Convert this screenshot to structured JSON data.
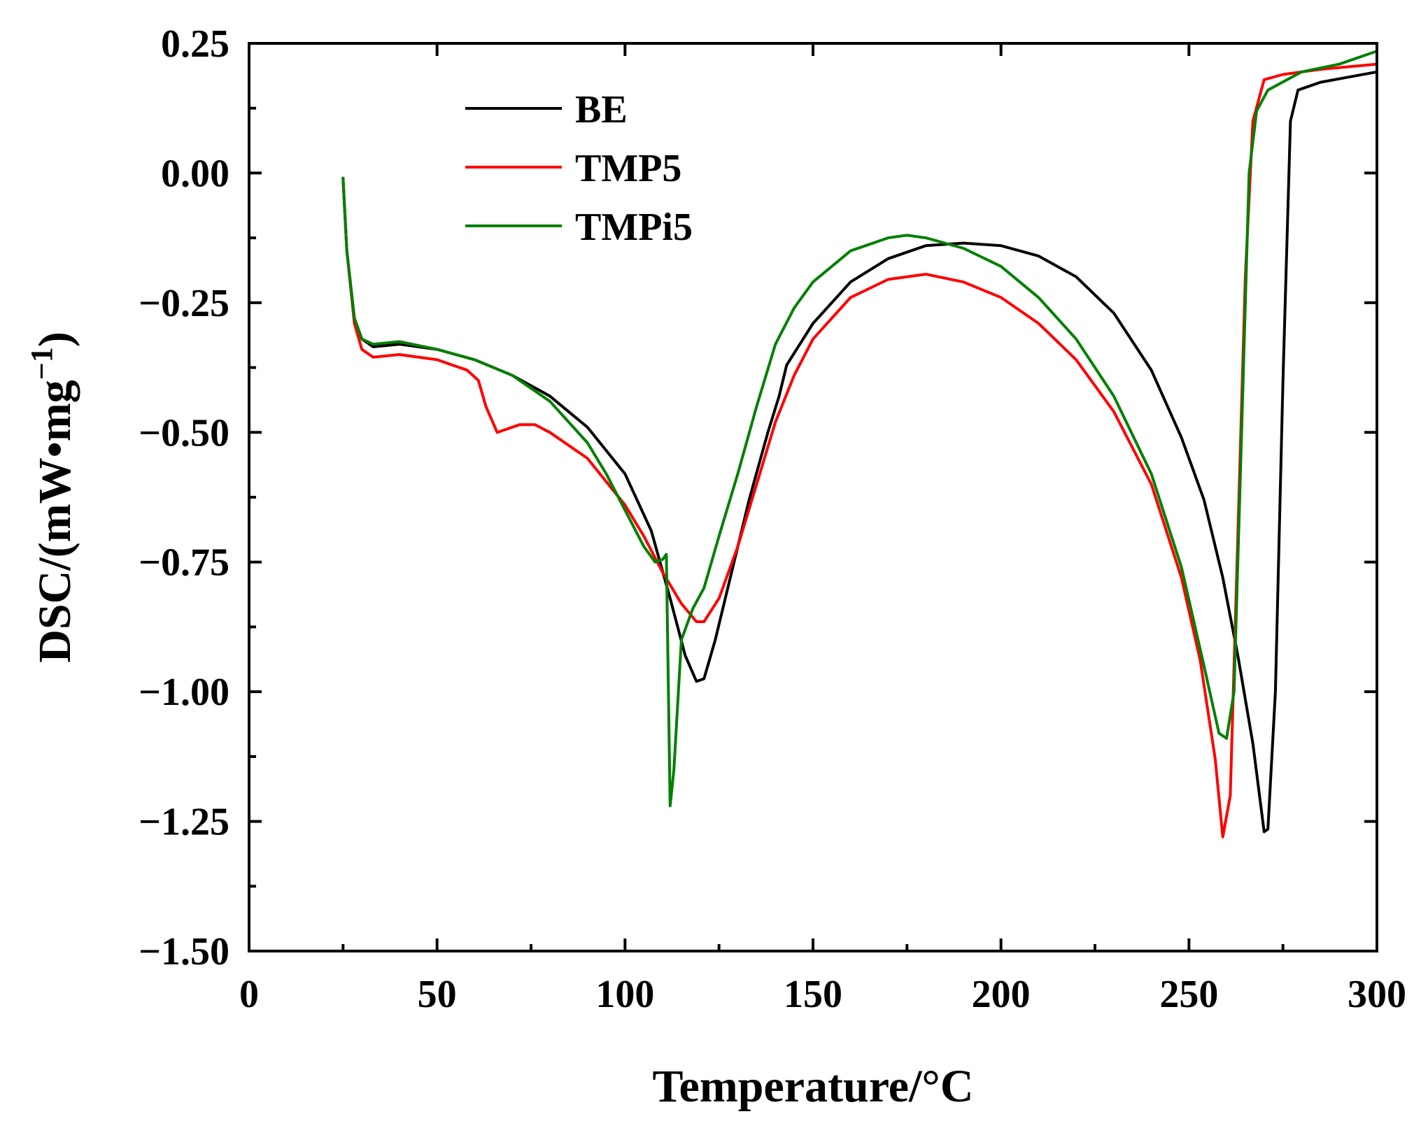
{
  "chart_data": {
    "type": "line",
    "title": "",
    "xlabel": "Temperature/°C",
    "ylabel_main": "DSC/(mW•mg",
    "ylabel_sup": "−1",
    "ylabel_close": ")",
    "xlim": [
      0,
      300
    ],
    "ylim": [
      -1.5,
      0.25
    ],
    "x_ticks": [
      0,
      50,
      100,
      150,
      200,
      250,
      300
    ],
    "x_tick_labels": [
      "0",
      "50",
      "100",
      "150",
      "200",
      "250",
      "300"
    ],
    "y_ticks": [
      0.25,
      0.0,
      -0.25,
      -0.5,
      -0.75,
      -1.0,
      -1.25,
      -1.5
    ],
    "y_tick_labels": [
      "0.25",
      "0.00",
      "−0.25",
      "−0.50",
      "−0.75",
      "−1.00",
      "−1.25",
      "−1.50"
    ],
    "grid": false,
    "legend_position": "top-left",
    "series": [
      {
        "name": "BE",
        "color": "#000000",
        "points": [
          [
            25,
            -0.01
          ],
          [
            26,
            -0.15
          ],
          [
            28,
            -0.28
          ],
          [
            30,
            -0.32
          ],
          [
            33,
            -0.335
          ],
          [
            40,
            -0.33
          ],
          [
            50,
            -0.34
          ],
          [
            60,
            -0.36
          ],
          [
            70,
            -0.39
          ],
          [
            80,
            -0.43
          ],
          [
            90,
            -0.49
          ],
          [
            100,
            -0.58
          ],
          [
            107,
            -0.69
          ],
          [
            112,
            -0.82
          ],
          [
            116,
            -0.93
          ],
          [
            119,
            -0.98
          ],
          [
            121,
            -0.975
          ],
          [
            124,
            -0.9
          ],
          [
            128,
            -0.78
          ],
          [
            133,
            -0.63
          ],
          [
            138,
            -0.5
          ],
          [
            141,
            -0.43
          ],
          [
            143,
            -0.37
          ],
          [
            150,
            -0.29
          ],
          [
            160,
            -0.21
          ],
          [
            170,
            -0.165
          ],
          [
            180,
            -0.14
          ],
          [
            190,
            -0.135
          ],
          [
            200,
            -0.14
          ],
          [
            210,
            -0.16
          ],
          [
            220,
            -0.2
          ],
          [
            230,
            -0.27
          ],
          [
            240,
            -0.38
          ],
          [
            248,
            -0.51
          ],
          [
            254,
            -0.63
          ],
          [
            259,
            -0.78
          ],
          [
            263,
            -0.93
          ],
          [
            267,
            -1.1
          ],
          [
            270,
            -1.27
          ],
          [
            271,
            -1.265
          ],
          [
            273,
            -1.0
          ],
          [
            275,
            -0.4
          ],
          [
            277,
            0.1
          ],
          [
            279,
            0.16
          ],
          [
            285,
            0.175
          ],
          [
            300,
            0.195
          ]
        ]
      },
      {
        "name": "TMP5",
        "color": "#ff0000",
        "points": [
          [
            25,
            -0.01
          ],
          [
            26,
            -0.15
          ],
          [
            28,
            -0.29
          ],
          [
            30,
            -0.34
          ],
          [
            33,
            -0.355
          ],
          [
            40,
            -0.35
          ],
          [
            50,
            -0.36
          ],
          [
            58,
            -0.38
          ],
          [
            61,
            -0.4
          ],
          [
            63,
            -0.45
          ],
          [
            66,
            -0.5
          ],
          [
            68,
            -0.495
          ],
          [
            72,
            -0.485
          ],
          [
            76,
            -0.485
          ],
          [
            80,
            -0.5
          ],
          [
            90,
            -0.55
          ],
          [
            100,
            -0.64
          ],
          [
            105,
            -0.7
          ],
          [
            110,
            -0.77
          ],
          [
            115,
            -0.83
          ],
          [
            119,
            -0.865
          ],
          [
            121,
            -0.865
          ],
          [
            125,
            -0.82
          ],
          [
            130,
            -0.72
          ],
          [
            135,
            -0.6
          ],
          [
            140,
            -0.48
          ],
          [
            145,
            -0.39
          ],
          [
            150,
            -0.32
          ],
          [
            160,
            -0.24
          ],
          [
            170,
            -0.205
          ],
          [
            180,
            -0.195
          ],
          [
            190,
            -0.21
          ],
          [
            200,
            -0.24
          ],
          [
            210,
            -0.29
          ],
          [
            220,
            -0.36
          ],
          [
            230,
            -0.46
          ],
          [
            240,
            -0.6
          ],
          [
            248,
            -0.78
          ],
          [
            253,
            -0.94
          ],
          [
            257,
            -1.13
          ],
          [
            259,
            -1.28
          ],
          [
            261,
            -1.2
          ],
          [
            263,
            -0.7
          ],
          [
            265,
            -0.2
          ],
          [
            267,
            0.1
          ],
          [
            270,
            0.18
          ],
          [
            275,
            0.19
          ],
          [
            285,
            0.2
          ],
          [
            300,
            0.21
          ]
        ]
      },
      {
        "name": "TMPi5",
        "color": "#008000",
        "points": [
          [
            25,
            -0.01
          ],
          [
            26,
            -0.15
          ],
          [
            28,
            -0.28
          ],
          [
            30,
            -0.32
          ],
          [
            33,
            -0.33
          ],
          [
            40,
            -0.325
          ],
          [
            50,
            -0.34
          ],
          [
            60,
            -0.36
          ],
          [
            70,
            -0.39
          ],
          [
            80,
            -0.44
          ],
          [
            90,
            -0.52
          ],
          [
            95,
            -0.58
          ],
          [
            100,
            -0.65
          ],
          [
            105,
            -0.72
          ],
          [
            108,
            -0.75
          ],
          [
            110,
            -0.745
          ],
          [
            111,
            -0.735
          ],
          [
            112,
            -1.22
          ],
          [
            113,
            -1.15
          ],
          [
            115,
            -0.9
          ],
          [
            118,
            -0.84
          ],
          [
            121,
            -0.8
          ],
          [
            125,
            -0.7
          ],
          [
            130,
            -0.58
          ],
          [
            135,
            -0.45
          ],
          [
            140,
            -0.33
          ],
          [
            145,
            -0.26
          ],
          [
            150,
            -0.21
          ],
          [
            160,
            -0.15
          ],
          [
            170,
            -0.125
          ],
          [
            175,
            -0.12
          ],
          [
            180,
            -0.125
          ],
          [
            190,
            -0.145
          ],
          [
            200,
            -0.18
          ],
          [
            210,
            -0.24
          ],
          [
            220,
            -0.32
          ],
          [
            230,
            -0.43
          ],
          [
            240,
            -0.58
          ],
          [
            248,
            -0.76
          ],
          [
            254,
            -0.95
          ],
          [
            258,
            -1.08
          ],
          [
            260,
            -1.09
          ],
          [
            262,
            -1.0
          ],
          [
            264,
            -0.5
          ],
          [
            266,
            0.0
          ],
          [
            268,
            0.12
          ],
          [
            271,
            0.16
          ],
          [
            280,
            0.195
          ],
          [
            290,
            0.21
          ],
          [
            300,
            0.235
          ]
        ]
      }
    ]
  }
}
